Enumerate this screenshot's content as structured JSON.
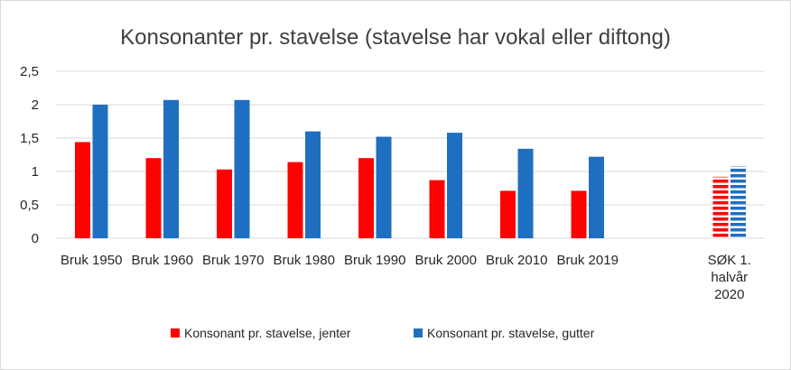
{
  "colors": {
    "jenter": "#ff0000",
    "gutter": "#1f6fc0",
    "grid": "#d9d9d9",
    "text": "#404040"
  },
  "chart_data": {
    "type": "bar",
    "title": "Konsonanter pr. stavelse (stavelse har vokal eller diftong)",
    "xlabel": "",
    "ylabel": "",
    "ylim": [
      0,
      2.5
    ],
    "yticks": [
      "0",
      "0,5",
      "1",
      "1,5",
      "2",
      "2,5"
    ],
    "grid": true,
    "legend_position": "bottom",
    "categories": [
      [
        "Bruk 1950"
      ],
      [
        "Bruk 1960"
      ],
      [
        "Bruk 1970"
      ],
      [
        "Bruk 1980"
      ],
      [
        "Bruk 1990"
      ],
      [
        "Bruk 2000"
      ],
      [
        "Bruk 2010"
      ],
      [
        "Bruk 2019"
      ],
      [],
      [
        "SØK 1.",
        "halvår",
        "2020"
      ]
    ],
    "series": [
      {
        "name": "Konsonant pr. stavelse, jenter",
        "color": "#ff0000",
        "values": [
          1.44,
          1.2,
          1.03,
          1.14,
          1.2,
          0.87,
          0.71,
          0.71,
          null,
          0.92
        ]
      },
      {
        "name": "Konsonant pr. stavelse, gutter",
        "color": "#1f6fc0",
        "values": [
          2.0,
          2.07,
          2.07,
          1.6,
          1.52,
          1.58,
          1.34,
          1.22,
          null,
          1.08
        ]
      }
    ],
    "striped_categories": [
      9
    ]
  }
}
